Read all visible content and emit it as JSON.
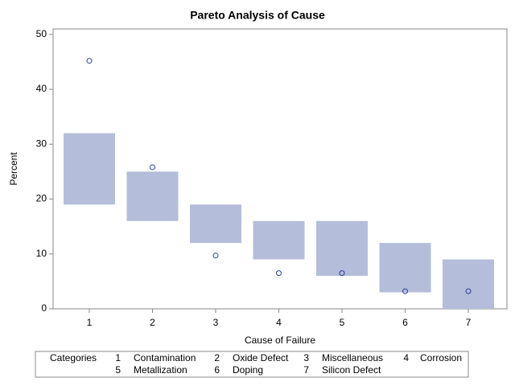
{
  "chart_data": {
    "type": "floating-bar-pareto",
    "title": "Pareto Analysis of Cause",
    "x_label": "Cause of Failure",
    "y_label": "Percent",
    "categories": [
      "1",
      "2",
      "3",
      "4",
      "5",
      "6",
      "7"
    ],
    "bar_low": [
      19,
      16,
      12,
      9,
      6,
      3,
      0
    ],
    "bar_high": [
      32,
      25,
      19,
      16,
      16,
      12,
      9
    ],
    "bar_color": "#b4bdd9",
    "percent": [
      45.2,
      25.8,
      9.7,
      6.5,
      6.5,
      3.2,
      3.2
    ],
    "point_color": "#2b3c9b",
    "ylim": [
      0,
      51
    ],
    "yticks": [
      0,
      10,
      20,
      30,
      40,
      50
    ],
    "legend": {
      "title": "Categories",
      "items": [
        {
          "key": "1",
          "label": "Contamination"
        },
        {
          "key": "2",
          "label": "Oxide Defect"
        },
        {
          "key": "3",
          "label": "Miscellaneous"
        },
        {
          "key": "4",
          "label": "Corrosion"
        },
        {
          "key": "5",
          "label": "Metallization"
        },
        {
          "key": "6",
          "label": "Doping"
        },
        {
          "key": "7",
          "label": "Silicon Defect"
        }
      ]
    }
  }
}
